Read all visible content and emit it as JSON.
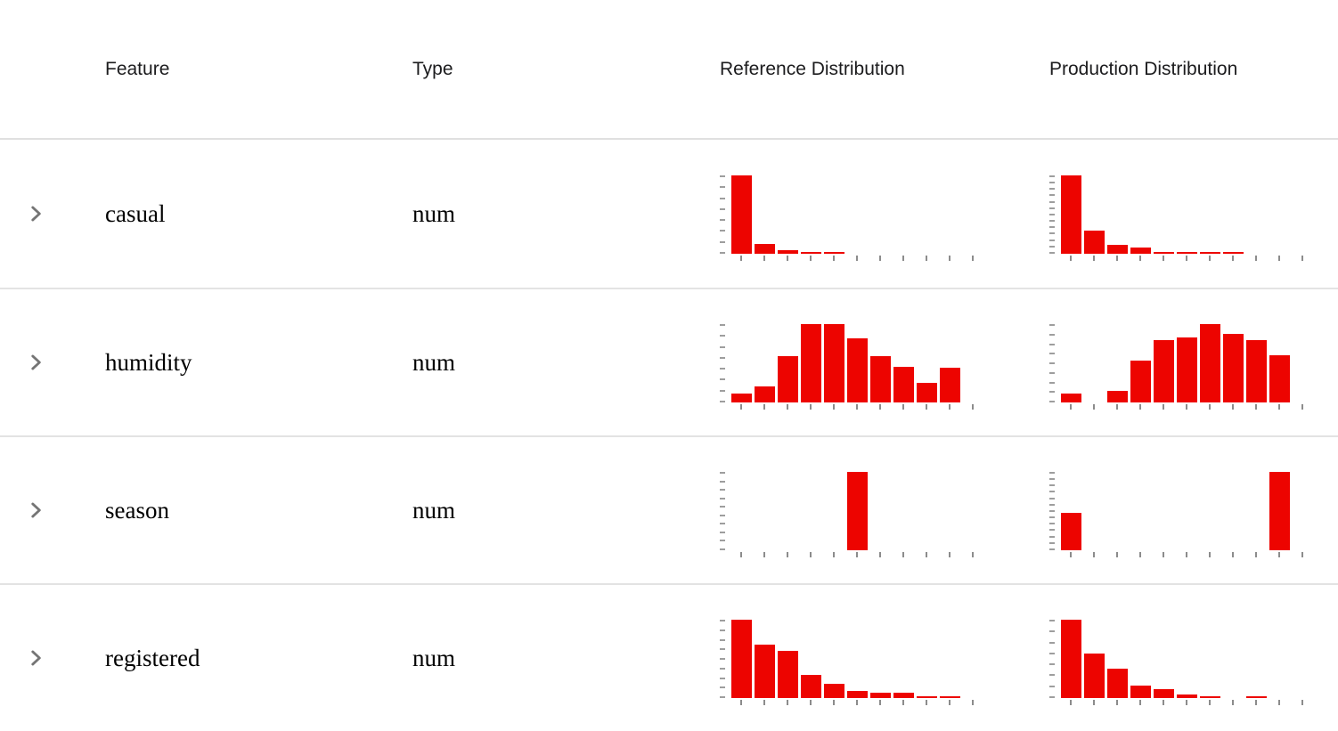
{
  "colors": {
    "accent": "#ed0400",
    "divider": "#e3e3e3",
    "axis_tick": "#8c8c8c",
    "chevron": "#757575"
  },
  "table": {
    "headers": [
      {
        "label": "Feature"
      },
      {
        "label": "Type"
      },
      {
        "label": "Reference Distribution"
      },
      {
        "label": "Production Distribution"
      }
    ],
    "rows": [
      {
        "feature": "casual",
        "type": "num",
        "reference": {
          "type": "histogram",
          "values": [
            1,
            0.13,
            0.05,
            0.02,
            0.02,
            0,
            0,
            0,
            0,
            0,
            0
          ],
          "y_ticks": 8,
          "x_ticks": 11
        },
        "production": {
          "type": "histogram",
          "values": [
            1,
            0.3,
            0.11,
            0.08,
            0.02,
            0.02,
            0.02,
            0.02,
            0,
            0,
            0
          ],
          "y_ticks": 13,
          "x_ticks": 11
        }
      },
      {
        "feature": "humidity",
        "type": "num",
        "reference": {
          "type": "histogram",
          "values": [
            0.11,
            0.2,
            0.59,
            1,
            1,
            0.82,
            0.59,
            0.46,
            0.25,
            0.44,
            0
          ],
          "y_ticks": 8,
          "x_ticks": 11
        },
        "production": {
          "type": "histogram",
          "values": [
            0.11,
            0,
            0.15,
            0.53,
            0.79,
            0.83,
            1,
            0.87,
            0.8,
            0.6,
            0
          ],
          "y_ticks": 9,
          "x_ticks": 11
        }
      },
      {
        "feature": "season",
        "type": "num",
        "reference": {
          "type": "histogram",
          "values": [
            0,
            0,
            0,
            0,
            0,
            1,
            0,
            0,
            0,
            0,
            0
          ],
          "y_ticks": 10,
          "x_ticks": 11
        },
        "production": {
          "type": "histogram",
          "values": [
            0.48,
            0,
            0,
            0,
            0,
            0,
            0,
            0,
            0,
            1,
            0
          ],
          "y_ticks": 13,
          "x_ticks": 11
        }
      },
      {
        "feature": "registered",
        "type": "num",
        "reference": {
          "type": "histogram",
          "values": [
            1,
            0.68,
            0.6,
            0.29,
            0.18,
            0.09,
            0.07,
            0.07,
            0.02,
            0.02,
            0
          ],
          "y_ticks": 9,
          "x_ticks": 11
        },
        "production": {
          "type": "histogram",
          "values": [
            1,
            0.57,
            0.38,
            0.16,
            0.11,
            0.05,
            0.02,
            0,
            0.02,
            0,
            0
          ],
          "y_ticks": 8,
          "x_ticks": 11
        }
      }
    ]
  }
}
